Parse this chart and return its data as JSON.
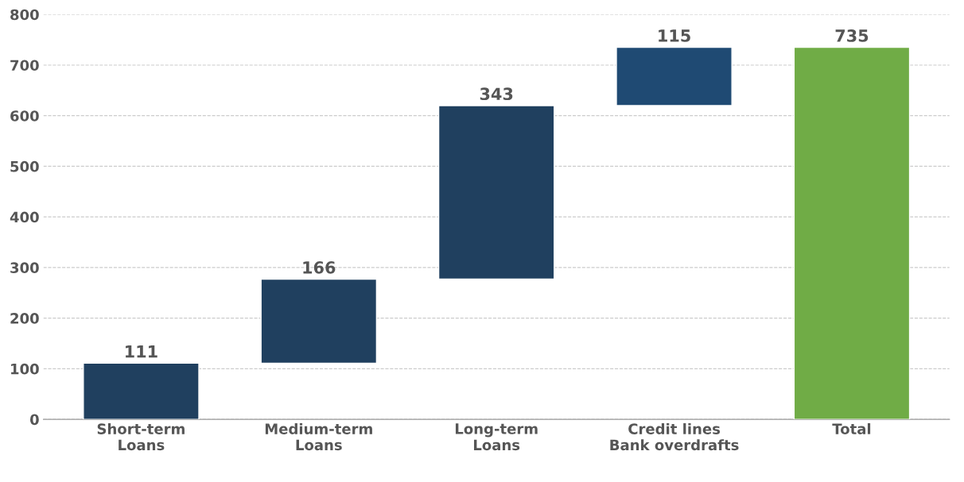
{
  "chart_data": {
    "type": "bar",
    "categories": [
      "Short-term\nLoans",
      "Medium-term\nLoans",
      "Long-term\nLoans",
      "Credit lines\nBank overdrafts",
      "Total"
    ],
    "values": [
      111,
      166,
      343,
      115,
      735
    ],
    "base": [
      0,
      111,
      277,
      620,
      0
    ],
    "colors": [
      "#20405f",
      "#20405f",
      "#20405f",
      "#1f4a73",
      "#70ac46"
    ],
    "data_labels": true,
    "ylim": [
      0,
      800
    ],
    "yticks": [
      0,
      100,
      200,
      300,
      400,
      500,
      600,
      700,
      800
    ],
    "grid": "y"
  }
}
